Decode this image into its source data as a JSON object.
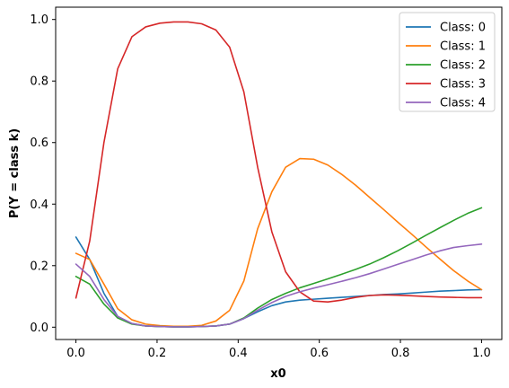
{
  "chart_data": {
    "type": "line",
    "xlabel": "x0",
    "ylabel": "P(Y = class k)",
    "xlim": [
      -0.05,
      1.05
    ],
    "ylim": [
      -0.04,
      1.04
    ],
    "xticks": [
      0.0,
      0.2,
      0.4,
      0.6,
      0.8,
      1.0
    ],
    "xtick_labels": [
      "0.0",
      "0.2",
      "0.4",
      "0.6",
      "0.8",
      "1.0"
    ],
    "yticks": [
      0.0,
      0.2,
      0.4,
      0.6,
      0.8,
      1.0
    ],
    "ytick_labels": [
      "0.0",
      "0.2",
      "0.4",
      "0.6",
      "0.8",
      "1.0"
    ],
    "grid": false,
    "legend_position": "top-right",
    "x": [
      0.0,
      0.034,
      0.069,
      0.103,
      0.138,
      0.172,
      0.207,
      0.241,
      0.276,
      0.31,
      0.345,
      0.379,
      0.414,
      0.448,
      0.483,
      0.517,
      0.552,
      0.586,
      0.621,
      0.655,
      0.69,
      0.724,
      0.759,
      0.793,
      0.828,
      0.862,
      0.897,
      0.931,
      0.966,
      1.0
    ],
    "series": [
      {
        "name": "Class: 0",
        "color": "#1f77b4",
        "values": [
          0.293,
          0.22,
          0.11,
          0.035,
          0.012,
          0.004,
          0.002,
          0.001,
          0.001,
          0.002,
          0.004,
          0.01,
          0.028,
          0.05,
          0.07,
          0.082,
          0.088,
          0.091,
          0.094,
          0.097,
          0.1,
          0.103,
          0.106,
          0.108,
          0.111,
          0.114,
          0.117,
          0.119,
          0.121,
          0.122
        ]
      },
      {
        "name": "Class: 1",
        "color": "#ff7f0e",
        "values": [
          0.24,
          0.22,
          0.14,
          0.06,
          0.024,
          0.01,
          0.005,
          0.003,
          0.003,
          0.006,
          0.02,
          0.055,
          0.15,
          0.32,
          0.44,
          0.52,
          0.548,
          0.546,
          0.527,
          0.497,
          0.461,
          0.422,
          0.382,
          0.342,
          0.302,
          0.262,
          0.222,
          0.184,
          0.15,
          0.122
        ]
      },
      {
        "name": "Class: 2",
        "color": "#2ca02c",
        "values": [
          0.165,
          0.14,
          0.075,
          0.03,
          0.01,
          0.004,
          0.002,
          0.001,
          0.001,
          0.002,
          0.004,
          0.01,
          0.03,
          0.062,
          0.09,
          0.11,
          0.128,
          0.142,
          0.157,
          0.172,
          0.188,
          0.205,
          0.226,
          0.248,
          0.273,
          0.298,
          0.323,
          0.347,
          0.37,
          0.388
        ]
      },
      {
        "name": "Class: 3",
        "color": "#d62728",
        "values": [
          0.095,
          0.28,
          0.6,
          0.84,
          0.944,
          0.976,
          0.988,
          0.992,
          0.992,
          0.986,
          0.966,
          0.91,
          0.765,
          0.52,
          0.31,
          0.18,
          0.115,
          0.085,
          0.082,
          0.088,
          0.097,
          0.103,
          0.105,
          0.104,
          0.102,
          0.1,
          0.098,
          0.097,
          0.096,
          0.096
        ]
      },
      {
        "name": "Class: 4",
        "color": "#9467bd",
        "values": [
          0.205,
          0.165,
          0.09,
          0.035,
          0.012,
          0.004,
          0.002,
          0.001,
          0.001,
          0.002,
          0.004,
          0.01,
          0.028,
          0.055,
          0.08,
          0.1,
          0.115,
          0.127,
          0.138,
          0.149,
          0.161,
          0.174,
          0.189,
          0.204,
          0.219,
          0.234,
          0.248,
          0.259,
          0.265,
          0.27
        ]
      }
    ]
  }
}
